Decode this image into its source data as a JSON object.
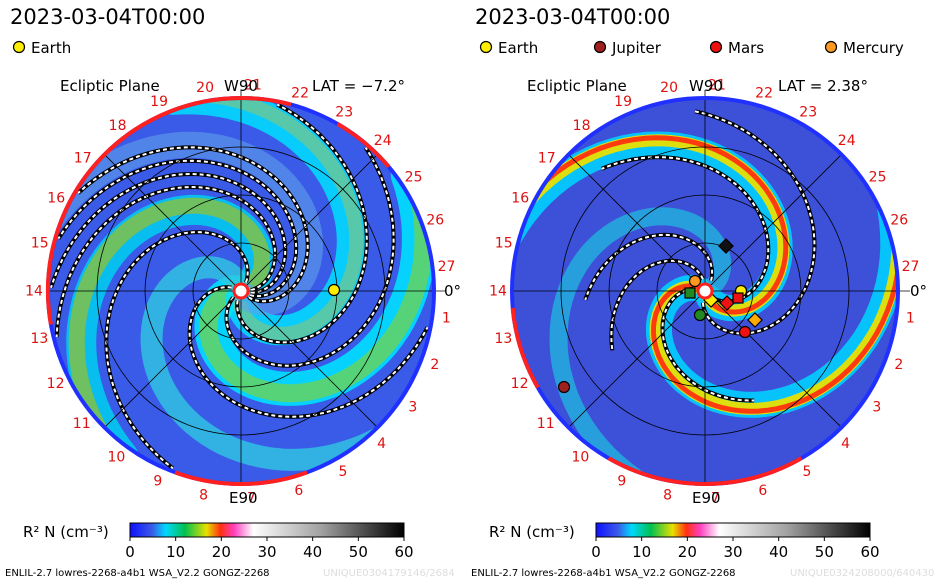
{
  "chart_data": [
    {
      "type": "heatmap",
      "title": "2023-03-04T00:00",
      "plane_label": "Ecliptic Plane",
      "lat_label": "LAT = −7.2°",
      "top_label": "W90",
      "bottom_label": "E90",
      "right_label": "0°",
      "legend": [
        {
          "name": "Earth",
          "color": "#ffee00",
          "angle_deg": 0,
          "r_frac": 0.47,
          "shape": "circle"
        }
      ],
      "carrington_numbers": [
        "1",
        "2",
        "3",
        "4",
        "5",
        "6",
        "7",
        "8",
        "9",
        "10",
        "11",
        "12",
        "13",
        "14",
        "15",
        "16",
        "17",
        "18",
        "19",
        "20",
        "21",
        "22",
        "23",
        "24",
        "25",
        "26",
        "27"
      ],
      "colorbar": {
        "label": "R² N (cm⁻³)",
        "range": [
          0,
          60
        ],
        "ticks": [
          "0",
          "10",
          "20",
          "30",
          "40",
          "50",
          "60"
        ]
      }
    },
    {
      "type": "heatmap",
      "title": "2023-03-04T00:00",
      "plane_label": "Ecliptic Plane",
      "lat_label": "LAT = 2.38°",
      "top_label": "W90",
      "bottom_label": "E90",
      "right_label": "0°",
      "legend": [
        {
          "name": "Earth",
          "color": "#ffee00",
          "shape": "circle"
        },
        {
          "name": "Jupiter",
          "color": "#a02020",
          "shape": "circle"
        },
        {
          "name": "Mars",
          "color": "#ee1111",
          "shape": "circle"
        },
        {
          "name": "Mercury",
          "color": "#ff9922",
          "shape": "circle"
        }
      ],
      "carrington_numbers": [
        "1",
        "2",
        "3",
        "4",
        "5",
        "6",
        "7",
        "8",
        "9",
        "10",
        "11",
        "12",
        "13",
        "14",
        "15",
        "16",
        "17",
        "18",
        "19",
        "20",
        "21",
        "22",
        "23",
        "24",
        "25",
        "26",
        "27"
      ],
      "colorbar": {
        "label": "R² N (cm⁻³)",
        "range": [
          0,
          60
        ],
        "ticks": [
          "0",
          "10",
          "20",
          "30",
          "40",
          "50",
          "60"
        ]
      }
    }
  ],
  "footer": {
    "left_model": "ENLIL-2.7 lowres-2268-a4b1 WSA_V2.2 GONGZ-2268",
    "right_model": "ENLIL-2.7 lowres-2268-a4b1 WSA_V2.2 GONGZ-2268",
    "left_id": "UNIQUE0304179146/2684",
    "right_id": "UNIQUE0324208000/640430"
  },
  "colors": {
    "background_blue": "#3a5ae8",
    "ring_red": "#ff2020",
    "ring_blue": "#2030ff"
  }
}
